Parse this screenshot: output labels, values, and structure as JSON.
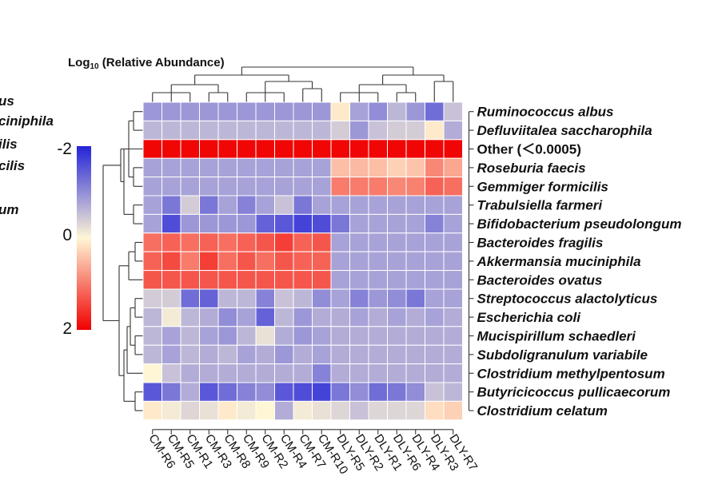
{
  "chart_data": {
    "type": "heatmap",
    "title": "Log10 (Relative Abundance)",
    "color_scale": {
      "ticks": [
        "-2",
        "0",
        "2"
      ],
      "min": -2,
      "max": 2,
      "colors": [
        "#2323d8",
        "#fff6d6",
        "#f00000"
      ]
    },
    "columns": [
      "CM-R6",
      "CM-R5",
      "CM-R1",
      "CM-R3",
      "CM-R8",
      "CM-R9",
      "CM-R2",
      "CM-R4",
      "CM-R7",
      "CM-R10",
      "DLY-R5",
      "DLY-R2",
      "DLY-R1",
      "DLY-R6",
      "DLY-R4",
      "DLY-R3",
      "DLY-R7"
    ],
    "rows": [
      "Ruminococcus albus",
      "Defluviitalea saccharophila",
      "Other (＜0.0005)",
      "Roseburia faecis",
      "Gemmiger formicilis",
      "Trabulsiella farmeri",
      "Bifidobacterium pseudolongum",
      "Bacteroides fragilis",
      "Akkermansia muciniphila",
      "Bacteroides ovatus",
      "Streptococcus alactolyticus",
      "Escherichia coli",
      "Mucispirillum schaedleri",
      "Subdoligranulum variabile",
      "Clostridium methylpentosum",
      "Butyricicoccus pullicaecorum",
      "Clostridium celatum"
    ],
    "values": [
      [
        -0.9,
        -0.9,
        -0.9,
        -0.9,
        -0.9,
        -0.9,
        -0.9,
        -0.9,
        -0.9,
        -0.9,
        0.1,
        -0.8,
        -1.0,
        -0.6,
        -0.9,
        -1.3,
        -0.5
      ],
      [
        -0.6,
        -0.6,
        -0.6,
        -0.6,
        -0.6,
        -0.6,
        -0.6,
        -0.6,
        -0.6,
        -0.6,
        -0.4,
        -0.9,
        -0.5,
        -0.4,
        -0.4,
        0.1,
        -0.7
      ],
      [
        1.95,
        1.95,
        1.95,
        1.95,
        1.95,
        1.95,
        1.95,
        1.95,
        1.95,
        1.95,
        1.95,
        1.95,
        1.95,
        1.95,
        1.95,
        1.95,
        1.95
      ],
      [
        -0.8,
        -0.8,
        -0.8,
        -0.8,
        -0.8,
        -0.8,
        -0.8,
        -0.8,
        -0.8,
        -0.8,
        0.45,
        0.5,
        0.45,
        0.3,
        0.4,
        0.9,
        0.65
      ],
      [
        -0.8,
        -0.8,
        -0.8,
        -0.8,
        -0.8,
        -0.8,
        -0.8,
        -0.8,
        -0.8,
        -0.8,
        1.0,
        1.0,
        1.0,
        0.9,
        0.95,
        1.2,
        1.1
      ],
      [
        -0.8,
        -1.2,
        -0.4,
        -1.2,
        -0.8,
        -1.1,
        -0.8,
        -0.5,
        -1.2,
        -0.8,
        -0.8,
        -0.8,
        -0.8,
        -0.8,
        -0.8,
        -0.8,
        -0.8
      ],
      [
        -0.8,
        -1.6,
        -0.9,
        -0.9,
        -0.9,
        -0.9,
        -1.4,
        -1.5,
        -1.7,
        -1.6,
        -1.2,
        -0.8,
        -0.8,
        -0.8,
        -0.8,
        -1.1,
        -0.8
      ],
      [
        1.1,
        1.2,
        1.1,
        1.2,
        1.1,
        1.2,
        1.3,
        1.5,
        1.2,
        1.3,
        -0.8,
        -0.8,
        -0.8,
        -0.8,
        -0.8,
        -0.8,
        -0.8
      ],
      [
        1.2,
        1.4,
        1.0,
        1.5,
        1.1,
        1.3,
        1.1,
        1.3,
        1.2,
        1.2,
        -0.8,
        -0.8,
        -0.8,
        -0.8,
        -0.8,
        -0.8,
        -0.8
      ],
      [
        1.3,
        1.3,
        1.3,
        1.3,
        1.3,
        1.3,
        1.3,
        1.3,
        1.3,
        1.3,
        -0.8,
        -0.8,
        -0.8,
        -0.8,
        -0.8,
        -0.8,
        -0.8
      ],
      [
        -0.4,
        -0.4,
        -1.3,
        -1.4,
        -0.6,
        -0.6,
        -1.1,
        -0.5,
        -0.6,
        -1.0,
        -0.8,
        -1.1,
        -0.9,
        -1.0,
        -1.2,
        -0.8,
        -0.8
      ],
      [
        -0.6,
        -0.1,
        -0.6,
        -0.7,
        -1.0,
        -0.8,
        -1.4,
        -0.6,
        -0.9,
        -0.7,
        -0.7,
        -0.8,
        -0.7,
        -0.8,
        -0.7,
        -0.8,
        -0.7
      ],
      [
        -0.6,
        -0.8,
        -0.6,
        -0.8,
        -0.9,
        -0.6,
        -0.2,
        -0.7,
        -0.9,
        -0.8,
        -0.7,
        -0.7,
        -0.7,
        -0.7,
        -0.7,
        -0.7,
        -0.7
      ],
      [
        -0.6,
        -0.8,
        -0.6,
        -0.7,
        -0.6,
        -0.8,
        -0.7,
        -0.9,
        -0.7,
        -0.8,
        -0.7,
        -0.7,
        -0.7,
        -0.7,
        -0.7,
        -0.7,
        -0.7
      ],
      [
        0.0,
        -0.5,
        -0.7,
        -0.7,
        -0.7,
        -0.7,
        -0.7,
        -0.7,
        -0.7,
        -1.1,
        -0.7,
        -0.7,
        -0.7,
        -0.7,
        -0.7,
        -0.7,
        -0.7
      ],
      [
        -1.5,
        -1.2,
        -0.7,
        -1.5,
        -1.3,
        -1.1,
        -1.0,
        -1.5,
        -1.6,
        -1.7,
        -1.2,
        -1.0,
        -1.3,
        -1.2,
        -1.0,
        -0.5,
        -0.6
      ],
      [
        0.1,
        -0.1,
        -0.3,
        -0.2,
        0.1,
        -0.1,
        0.0,
        -0.7,
        -0.1,
        -0.2,
        -0.3,
        -0.5,
        -0.3,
        -0.3,
        -0.3,
        0.2,
        0.3
      ]
    ],
    "cutoff_left_labels": [
      "us",
      "ciniphila",
      "ilis",
      "cilis",
      "um"
    ]
  }
}
